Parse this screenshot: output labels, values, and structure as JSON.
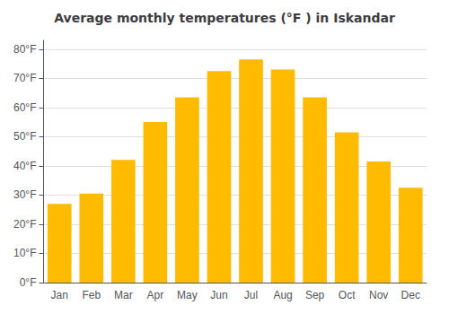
{
  "chart_data": {
    "type": "bar",
    "title": "Average monthly temperatures (°F ) in Iskandar",
    "categories": [
      "Jan",
      "Feb",
      "Mar",
      "Apr",
      "May",
      "Jun",
      "Jul",
      "Aug",
      "Sep",
      "Oct",
      "Nov",
      "Dec"
    ],
    "values": [
      27,
      30.5,
      42,
      55,
      63.5,
      72.5,
      76.5,
      73,
      63.5,
      51.5,
      41.5,
      32.5
    ],
    "color": "#FFBB00",
    "ylim": [
      0,
      83
    ],
    "yticks": [
      {
        "value": 0,
        "label": "0°F"
      },
      {
        "value": 10,
        "label": "10°F"
      },
      {
        "value": 20,
        "label": "20°F"
      },
      {
        "value": 30,
        "label": "30°F"
      },
      {
        "value": 40,
        "label": "40°F"
      },
      {
        "value": 50,
        "label": "50°F"
      },
      {
        "value": 60,
        "label": "60°F"
      },
      {
        "value": 70,
        "label": "70°F"
      },
      {
        "value": 80,
        "label": "80°F"
      }
    ],
    "grid": true
  }
}
